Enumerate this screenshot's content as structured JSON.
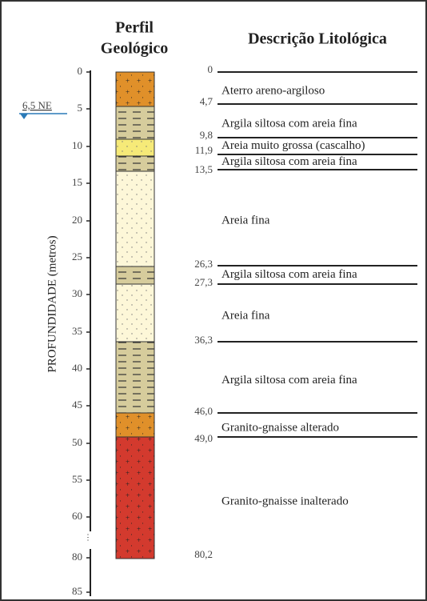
{
  "header": {
    "column_title_lines": [
      "Perfil",
      "Geológico"
    ],
    "description_title": "Descrição Litológica"
  },
  "axis": {
    "label": "PROFUNDIDADE (metros)",
    "ticks": [
      "0",
      "5",
      "10",
      "15",
      "20",
      "25",
      "30",
      "35",
      "40",
      "45",
      "50",
      "55",
      "60",
      "80",
      "85"
    ]
  },
  "water_level": "6,5 NE",
  "boundaries": [
    "0",
    "4,7",
    "9,8",
    "11,9",
    "13,5",
    "26,3",
    "27,3",
    "36,3",
    "46,0",
    "49,0",
    "80,2"
  ],
  "layers": [
    {
      "description": "Aterro areno-argiloso"
    },
    {
      "description": "Argila siltosa com areia fina"
    },
    {
      "description": "Areia muito grossa (cascalho)"
    },
    {
      "description": "Argila siltosa com areia fina"
    },
    {
      "description": "Areia fina"
    },
    {
      "description": "Argila siltosa com areia fina"
    },
    {
      "description": "Areia fina"
    },
    {
      "description": "Argila siltosa com areia fina"
    },
    {
      "description": "Granito-gnaisse alterado"
    },
    {
      "description": "Granito-gnaisse inalterado"
    }
  ]
}
